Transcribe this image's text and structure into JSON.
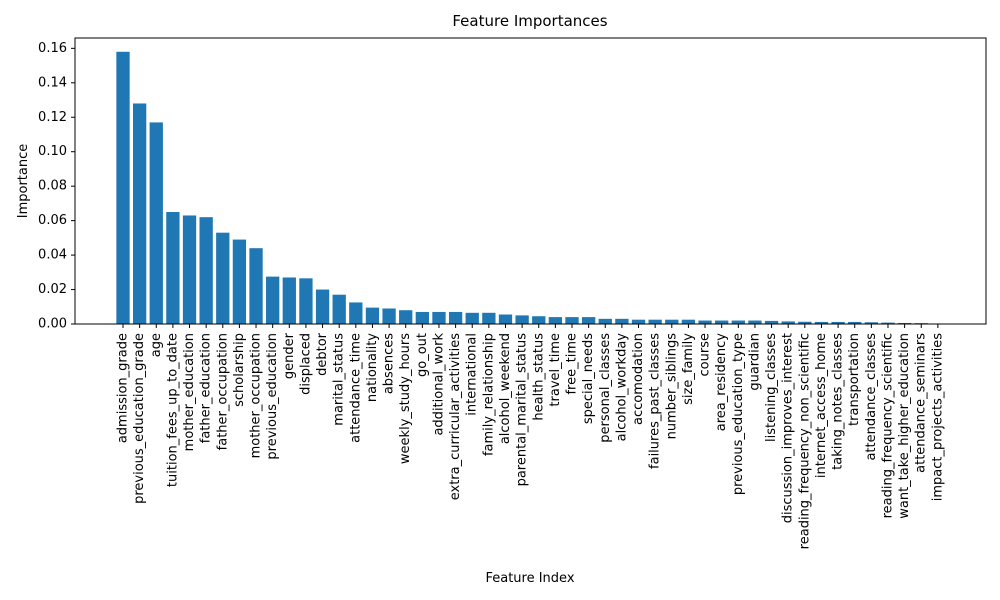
{
  "chart_data": {
    "type": "bar",
    "title": "Feature Importances",
    "xlabel": "Feature Index",
    "ylabel": "Importance",
    "ylim": [
      0,
      0.166
    ],
    "yticks": [
      "0.00",
      "0.02",
      "0.04",
      "0.06",
      "0.08",
      "0.10",
      "0.12",
      "0.14",
      "0.16"
    ],
    "bar_color": "#1f77b4",
    "grid": false,
    "categories": [
      "admission_grade",
      "previous_education_grade",
      "age",
      "tuition_fees_up_to_date",
      "mother_education",
      "father_education",
      "father_occupation",
      "scholarship",
      "mother_occupation",
      "previous_education",
      "gender",
      "displaced",
      "debtor",
      "marital_status",
      "attendance_time",
      "nationality",
      "absences",
      "weekly_study_hours",
      "go_out",
      "additional_work",
      "extra_curricular_activities",
      "international",
      "family_relationship",
      "alcohol_weekend",
      "parental_marital_status",
      "health_status",
      "travel_time",
      "free_time",
      "special_needs",
      "personal_classes",
      "alcohol_workday",
      "accomodation",
      "failures_past_classes",
      "number_siblings",
      "size_family",
      "course",
      "area_residency",
      "previous_education_type",
      "guardian",
      "listening_classes",
      "discussion_improves_interest",
      "reading_frequency_non_scientific",
      "internet_access_home",
      "taking_notes_classes",
      "transportation",
      "attendance_classes",
      "reading_frequency_scientific",
      "want_take_higher_education",
      "attendance_seminars",
      "impact_projects_activities"
    ],
    "values": [
      0.158,
      0.128,
      0.117,
      0.065,
      0.063,
      0.062,
      0.053,
      0.049,
      0.044,
      0.0275,
      0.027,
      0.0265,
      0.02,
      0.017,
      0.0125,
      0.0095,
      0.009,
      0.008,
      0.007,
      0.007,
      0.007,
      0.0065,
      0.0065,
      0.0055,
      0.005,
      0.0045,
      0.004,
      0.004,
      0.004,
      0.003,
      0.003,
      0.0025,
      0.0025,
      0.0025,
      0.0025,
      0.002,
      0.002,
      0.002,
      0.002,
      0.0018,
      0.0015,
      0.0013,
      0.0012,
      0.0012,
      0.0012,
      0.001,
      0.0008,
      0.0006,
      0.0005,
      0.0002
    ]
  }
}
